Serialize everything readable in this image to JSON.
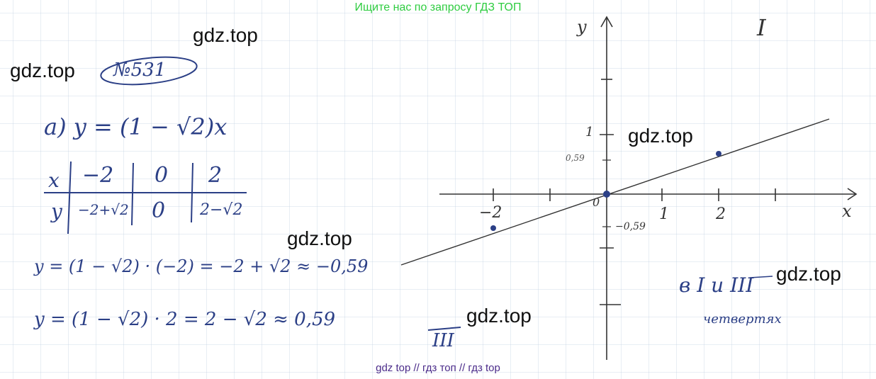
{
  "banner_top": "Ищите нас по запросу ГДЗ ТОП",
  "banner_bottom": "gdz top  //  гдз топ  //  гдз top",
  "watermark": "gdz.top",
  "problem_number": "№531",
  "part_label": "а) y = (1 − √2)x",
  "table": {
    "x_label": "x",
    "y_label": "y",
    "x_values": [
      "−2",
      "0",
      "2"
    ],
    "y_values": [
      "−2+√2",
      "0",
      "2−√2"
    ]
  },
  "calc_line_1": "y = (1 − √2) · (−2) = −2 + √2 ≈ −0,59",
  "calc_line_2": "y = (1 − √2) · 2 = 2 − √2 ≈ 0,59",
  "graph": {
    "x_axis_label": "x",
    "y_axis_label": "y",
    "origin_label": "0",
    "x_tick_labels": [
      "−2",
      "1",
      "2"
    ],
    "y_tick_labels": [
      "1",
      "0,59",
      "−0,59"
    ],
    "quadrant_label": "I",
    "lower_mark": "III",
    "answer_line_1": "в I и III",
    "answer_line_2": "четвертях"
  }
}
